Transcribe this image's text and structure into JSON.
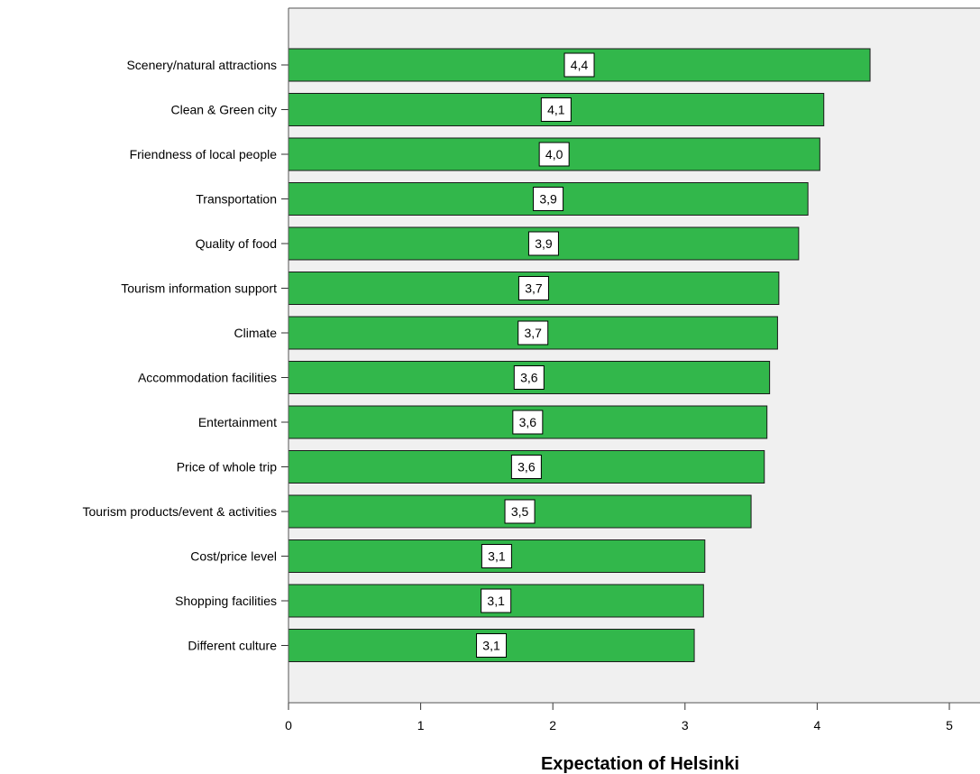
{
  "chart_data": {
    "type": "bar",
    "orientation": "horizontal",
    "title": "",
    "xlabel": "Expectation of Helsinki",
    "ylabel": "",
    "xlim": [
      0,
      5
    ],
    "xticks": [
      "0",
      "1",
      "2",
      "3",
      "4",
      "5"
    ],
    "categories": [
      "Scenery/natural attractions",
      "Clean & Green city",
      "Friendness of local people",
      "Transportation",
      "Quality of food",
      "Tourism information support",
      "Climate",
      "Accommodation facilities",
      "Entertainment",
      "Price of whole trip",
      "Tourism products/event & activities",
      "Cost/price level",
      "Shopping facilities",
      "Different culture"
    ],
    "values": [
      4.4,
      4.05,
      4.02,
      3.93,
      3.86,
      3.71,
      3.7,
      3.64,
      3.62,
      3.6,
      3.5,
      3.15,
      3.14,
      3.07
    ],
    "value_labels": [
      "4,4",
      "4,1",
      "4,0",
      "3,9",
      "3,9",
      "3,7",
      "3,7",
      "3,6",
      "3,6",
      "3,6",
      "3,5",
      "3,1",
      "3,1",
      "3,1"
    ],
    "bar_color": "#32b74b",
    "plot_background": "#f0f0f0",
    "grid": false,
    "legend": "none"
  }
}
